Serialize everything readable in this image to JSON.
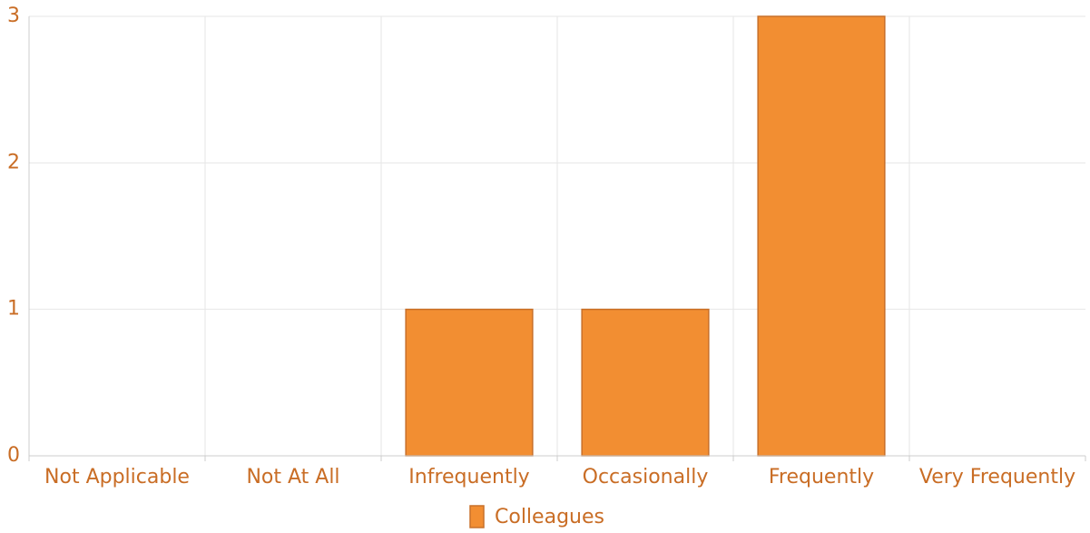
{
  "chart_data": {
    "type": "bar",
    "categories": [
      "Not Applicable",
      "Not At All",
      "Infrequently",
      "Occasionally",
      "Frequently",
      "Very Frequently"
    ],
    "series": [
      {
        "name": "Colleagues",
        "values": [
          0,
          0,
          1,
          1,
          3,
          0
        ]
      }
    ],
    "ylim": [
      0,
      3
    ],
    "yticks": [
      "0",
      "1",
      "2",
      "3"
    ],
    "grid": true,
    "legend_position": "bottom-center",
    "colors": {
      "bar_fill": "#f28e32",
      "bar_stroke": "#c8702a",
      "text": "#c96d25",
      "grid": "#e6e6e6",
      "axis": "#cccccc"
    }
  }
}
